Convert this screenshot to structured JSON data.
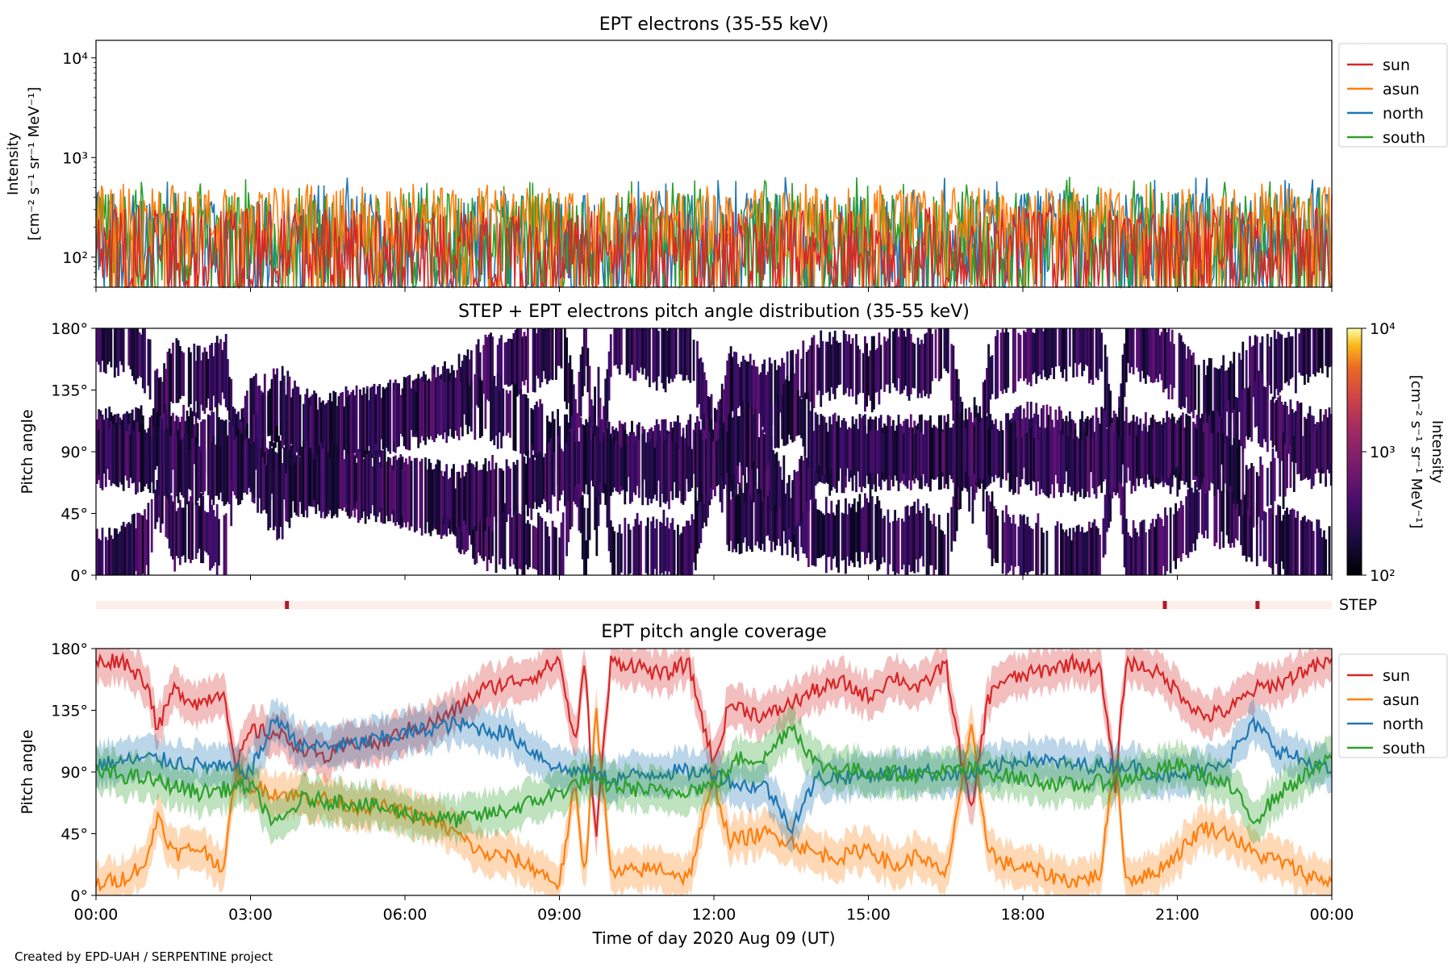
{
  "figure": {
    "credit": "Created by EPD-UAH / SERPENTINE project",
    "xlabel": "Time of day 2020 Aug 09 (UT)",
    "xticks": [
      "00:00",
      "03:00",
      "06:00",
      "09:00",
      "12:00",
      "15:00",
      "18:00",
      "21:00",
      "00:00"
    ]
  },
  "colors": {
    "sun": "#d62728",
    "asun": "#ff7f0e",
    "north": "#1f77b4",
    "south": "#2ca02c",
    "step_bar_bg": "#fdeeea",
    "step_mark": "#b2182b"
  },
  "panel1": {
    "title": "EPT electrons (35-55 keV)",
    "ylabel_line1": "Intensity",
    "ylabel_line2": "[cm⁻² s⁻¹ sr⁻¹ MeV⁻¹]",
    "yticks": [
      {
        "value": 100,
        "label": "10²"
      },
      {
        "value": 1000,
        "label": "10³"
      },
      {
        "value": 10000,
        "label": "10⁴"
      }
    ],
    "legend": [
      "sun",
      "asun",
      "north",
      "south"
    ]
  },
  "panel2": {
    "title": "STEP + EPT electrons pitch angle distribution (35-55 keV)",
    "ylabel": "Pitch angle",
    "yticks": [
      "0°",
      "45°",
      "90°",
      "135°",
      "180°"
    ],
    "colorbar_label_line1": "Intensity",
    "colorbar_label_line2": "[cm⁻² s⁻¹ sr⁻¹ MeV⁻¹]",
    "colorbar_ticks": [
      "10²",
      "10³",
      "10⁴"
    ]
  },
  "step_strip": {
    "label": "STEP",
    "marks_hours": [
      3.7,
      20.75,
      22.55
    ]
  },
  "panel3": {
    "title": "EPT pitch angle coverage",
    "ylabel": "Pitch angle",
    "yticks": [
      "0°",
      "45°",
      "90°",
      "135°",
      "180°"
    ],
    "legend": [
      "sun",
      "asun",
      "north",
      "south"
    ]
  },
  "chart_data": [
    {
      "type": "line",
      "title": "EPT electrons (35-55 keV)",
      "ylabel": "Intensity [cm⁻² s⁻¹ sr⁻¹ MeV⁻¹]",
      "yscale": "log",
      "ylim": [
        50,
        15000
      ],
      "xlim_hours": [
        0,
        24
      ],
      "legend_position": "right-top",
      "series": [
        {
          "name": "sun",
          "typical": [
            50,
            300
          ],
          "peak": 350
        },
        {
          "name": "asun",
          "typical": [
            100,
            500
          ],
          "peak": 550
        },
        {
          "name": "north",
          "typical": [
            50,
            450
          ],
          "peak": 650
        },
        {
          "name": "south",
          "typical": [
            50,
            450
          ],
          "peak": 650
        }
      ]
    },
    {
      "type": "heatmap",
      "title": "STEP + EPT electrons pitch angle distribution (35-55 keV)",
      "ylabel": "Pitch angle",
      "ylim": [
        0,
        180
      ],
      "xlim_hours": [
        0,
        24
      ],
      "colorbar_range": [
        100,
        10000
      ],
      "colorbar_scale": "log"
    },
    {
      "type": "line",
      "title": "EPT pitch angle coverage",
      "ylabel": "Pitch angle",
      "ylim": [
        0,
        180
      ],
      "xlim_hours": [
        0,
        24
      ],
      "legend_position": "right-top",
      "series": [
        {
          "name": "sun",
          "x": [
            0,
            0.5,
            1,
            1.2,
            1.5,
            2,
            2.5,
            2.7,
            3,
            3.5,
            4,
            4.5,
            5,
            5.5,
            6,
            6.5,
            7,
            7.5,
            8,
            8.5,
            9,
            9.3,
            9.5,
            9.7,
            10,
            10.5,
            11,
            11.5,
            12,
            12.3,
            13,
            13.5,
            14,
            14.5,
            15,
            15.5,
            16,
            16.5,
            16.8,
            17,
            17.3,
            17.5,
            18,
            18.5,
            19,
            19.5,
            19.8,
            20,
            20.5,
            21,
            21.5,
            22,
            22.5,
            23,
            23.5,
            24
          ],
          "y": [
            170,
            172,
            155,
            120,
            150,
            140,
            150,
            90,
            120,
            118,
            108,
            100,
            112,
            110,
            120,
            125,
            135,
            150,
            155,
            160,
            172,
            110,
            170,
            40,
            170,
            168,
            160,
            170,
            95,
            140,
            130,
            140,
            150,
            155,
            145,
            160,
            150,
            170,
            100,
            60,
            140,
            155,
            160,
            165,
            170,
            165,
            80,
            170,
            165,
            150,
            130,
            135,
            150,
            155,
            165,
            170
          ]
        },
        {
          "name": "asun",
          "x": [
            0,
            0.5,
            1,
            1.2,
            1.5,
            2,
            2.5,
            2.7,
            3,
            3.5,
            4,
            4.5,
            5,
            5.5,
            6,
            6.5,
            7,
            7.5,
            8,
            8.5,
            9,
            9.3,
            9.5,
            9.7,
            10,
            10.5,
            11,
            11.5,
            12,
            12.3,
            13,
            13.5,
            14,
            14.5,
            15,
            15.5,
            16,
            16.5,
            16.8,
            17,
            17.3,
            17.5,
            18,
            18.5,
            19,
            19.5,
            19.8,
            20,
            20.5,
            21,
            21.5,
            22,
            22.5,
            23,
            23.5,
            24
          ],
          "y": [
            8,
            12,
            25,
            60,
            30,
            35,
            20,
            90,
            80,
            75,
            72,
            70,
            65,
            65,
            60,
            55,
            45,
            30,
            28,
            20,
            8,
            80,
            10,
            140,
            15,
            18,
            20,
            12,
            85,
            40,
            45,
            40,
            30,
            28,
            35,
            20,
            30,
            12,
            80,
            120,
            40,
            25,
            20,
            15,
            10,
            15,
            100,
            12,
            15,
            30,
            50,
            45,
            30,
            25,
            15,
            10
          ]
        },
        {
          "name": "north",
          "x": [
            0,
            1,
            2,
            3,
            3.5,
            4,
            5,
            6,
            7,
            8,
            9,
            9.5,
            10,
            11,
            12,
            12.5,
            13,
            13.5,
            14,
            15,
            16,
            17,
            18,
            19,
            20,
            21,
            22,
            22.5,
            23,
            24
          ],
          "y": [
            95,
            100,
            95,
            90,
            130,
            108,
            110,
            118,
            125,
            118,
            92,
            90,
            85,
            90,
            90,
            80,
            80,
            50,
            85,
            88,
            90,
            88,
            100,
            95,
            95,
            85,
            100,
            125,
            105,
            90
          ]
        },
        {
          "name": "south",
          "x": [
            0,
            1,
            2,
            3,
            3.5,
            4,
            5,
            6,
            7,
            8,
            9,
            9.5,
            10,
            11,
            12,
            12.5,
            13,
            13.5,
            14,
            15,
            16,
            17,
            18,
            19,
            20,
            21,
            22,
            22.5,
            23,
            24
          ],
          "y": [
            90,
            85,
            75,
            80,
            50,
            70,
            68,
            60,
            55,
            62,
            75,
            85,
            80,
            75,
            80,
            100,
            100,
            125,
            95,
            90,
            88,
            92,
            85,
            80,
            85,
            95,
            80,
            55,
            75,
            100
          ]
        }
      ]
    }
  ]
}
